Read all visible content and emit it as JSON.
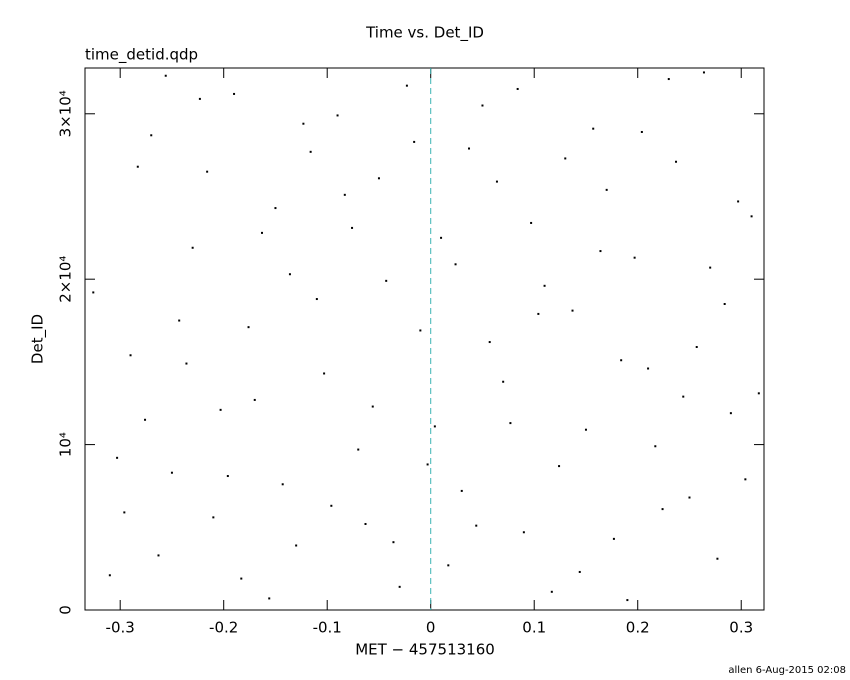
{
  "chart_data": {
    "type": "scatter",
    "title": "Time vs. Det_ID",
    "subtitle": "time_detid.qdp",
    "x_label": "MET − 457513160",
    "y_label": "Det_ID",
    "footer": "allen  6-Aug-2015 02:08",
    "xlim": [
      -0.334,
      0.322
    ],
    "ylim": [
      0,
      32768
    ],
    "xticks": [
      -0.3,
      -0.2,
      -0.1,
      0,
      0.1,
      0.2,
      0.3
    ],
    "yticks": [
      0,
      {
        "value": 10000,
        "label": "10⁴"
      },
      {
        "value": 20000,
        "label": "2×10⁴"
      },
      {
        "value": 30000,
        "label": "3×10⁴"
      }
    ],
    "vline": {
      "x": 0,
      "color": "#3cb4b4"
    },
    "series": [
      {
        "color": "#000000",
        "x": [
          -0.31,
          -0.29,
          -0.27,
          -0.25,
          -0.23,
          -0.21,
          -0.19,
          -0.17,
          -0.15,
          -0.13,
          -0.11,
          -0.09,
          -0.07,
          -0.05,
          -0.03,
          -0.01,
          0.01,
          0.03,
          0.05,
          0.07,
          0.09,
          0.11,
          0.13,
          0.15,
          0.17,
          0.19,
          0.21,
          0.23,
          0.25,
          0.27,
          0.29,
          0.31,
          -0.303,
          -0.283,
          -0.263,
          -0.243,
          -0.223,
          -0.203,
          -0.183,
          -0.163,
          -0.143,
          -0.123,
          -0.103,
          -0.083,
          -0.063,
          -0.043,
          -0.023,
          -0.003,
          0.017,
          0.037,
          0.057,
          0.077,
          0.097,
          0.117,
          0.137,
          0.157,
          0.177,
          0.197,
          0.217,
          0.237,
          0.257,
          0.277,
          0.297,
          0.317,
          -0.326,
          -0.296,
          -0.276,
          -0.256,
          -0.236,
          -0.216,
          -0.196,
          -0.176,
          -0.156,
          -0.136,
          -0.116,
          -0.096,
          -0.076,
          -0.056,
          -0.036,
          -0.016,
          0.004,
          0.024,
          0.044,
          0.064,
          0.084,
          0.104,
          0.124,
          0.144,
          0.164,
          0.184,
          0.204,
          0.224,
          0.244,
          0.264,
          0.284,
          0.304
        ],
        "y": [
          2100,
          15400,
          28700,
          8300,
          21900,
          5600,
          31200,
          12700,
          24300,
          3900,
          18800,
          29900,
          9700,
          26100,
          1400,
          16900,
          22500,
          7200,
          30500,
          13800,
          4700,
          19600,
          27300,
          10900,
          25400,
          600,
          14600,
          32100,
          6800,
          20700,
          11900,
          23800,
          9200,
          26800,
          3300,
          17500,
          30900,
          12100,
          1900,
          22800,
          7600,
          29400,
          14300,
          25100,
          5200,
          19900,
          31700,
          8800,
          2700,
          27900,
          16200,
          11300,
          23400,
          1100,
          18100,
          29100,
          4300,
          21300,
          9900,
          27100,
          15900,
          3100,
          24700,
          13100,
          19200,
          5900,
          11500,
          32300,
          14900,
          26500,
          8100,
          17100,
          700,
          20300,
          27700,
          6300,
          23100,
          12300,
          4100,
          28300,
          11100,
          20900,
          5100,
          25900,
          31500,
          17900,
          8700,
          2300,
          21700,
          15100,
          28900,
          6100,
          12900,
          32500,
          18500,
          7900
        ]
      }
    ]
  }
}
